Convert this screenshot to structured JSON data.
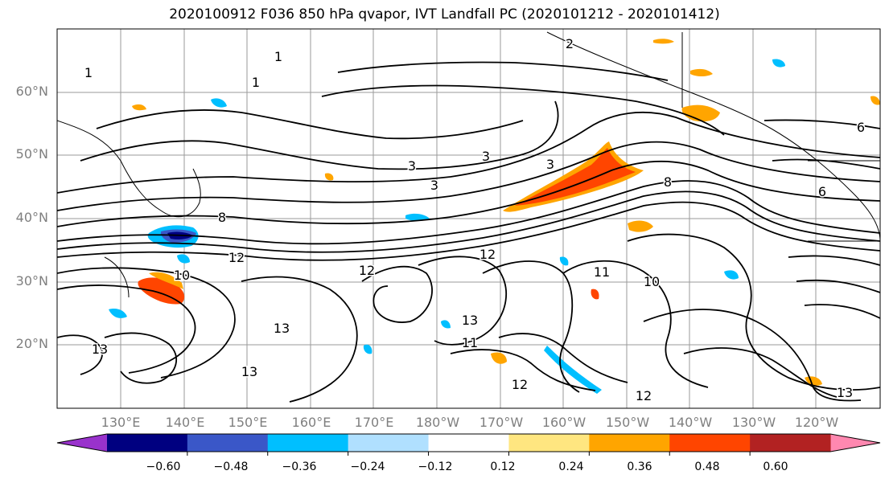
{
  "title": "2020100912 F036 850 hPa qvapor, IVT Landfall PC (2020101212 - 2020101412)",
  "lat_labels": [
    "60°N",
    "50°N",
    "40°N",
    "30°N",
    "20°N"
  ],
  "lon_labels": [
    "130°E",
    "140°E",
    "150°E",
    "160°E",
    "170°E",
    "180°W",
    "170°W",
    "160°W",
    "150°W",
    "140°W",
    "130°W",
    "120°W"
  ],
  "colorbar": {
    "ticks": [
      "−0.60",
      "−0.48",
      "−0.36",
      "−0.24",
      "−0.12",
      "0.12",
      "0.24",
      "0.36",
      "0.48",
      "0.60"
    ],
    "colors": [
      "#9932cc",
      "#000080",
      "#3a57c8",
      "#00bfff",
      "#b0e0ff",
      "#ffffff",
      "#ffe680",
      "#ffa500",
      "#ff4500",
      "#b22222",
      "#ff88b0"
    ]
  },
  "contour_labels": [
    "1",
    "1",
    "1",
    "2",
    "3",
    "3",
    "3",
    "3",
    "6",
    "6",
    "8",
    "8",
    "11",
    "11",
    "12",
    "12",
    "12",
    "12",
    "12",
    "13",
    "13",
    "13",
    "13",
    "13",
    "10",
    "10"
  ],
  "colors": {
    "land": "#ffffff",
    "contour": "#000000",
    "grid": "#808080",
    "coast": "#000000"
  }
}
